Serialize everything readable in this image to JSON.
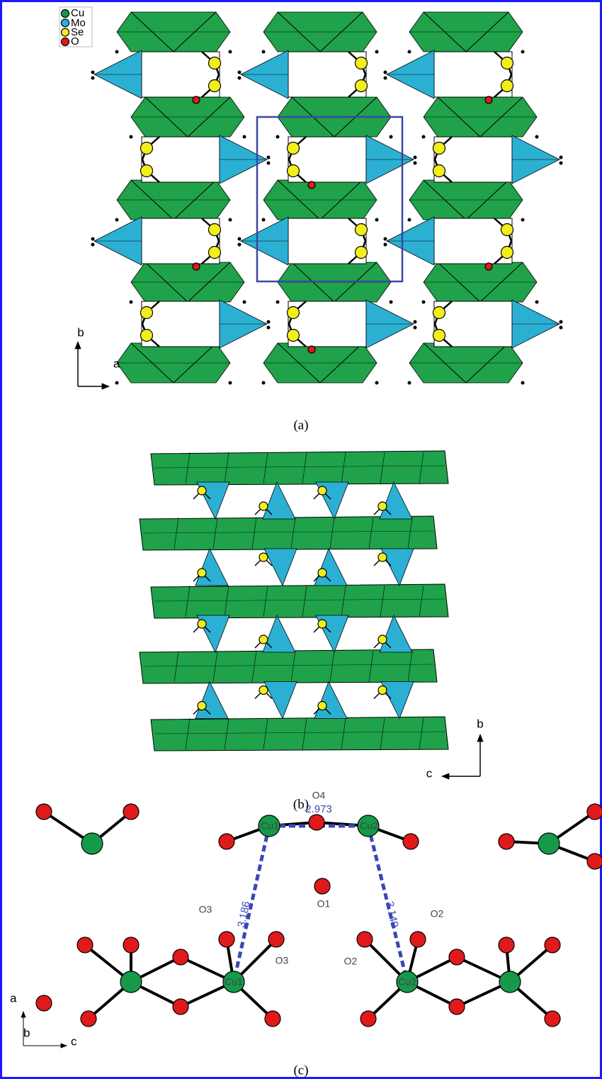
{
  "legend": [
    "Cu",
    "Mo",
    "Se",
    "O"
  ],
  "panel_a": {
    "caption": "(a)",
    "axes": [
      "b",
      "a"
    ]
  },
  "panel_b": {
    "caption": "(b)",
    "axes": [
      "b",
      "c"
    ]
  },
  "panel_c": {
    "caption": "(c)",
    "axes": [
      "a",
      "b",
      "c"
    ],
    "atom_labels": [
      "O4",
      "Cu1",
      "Cu2",
      "O1",
      "O3",
      "O3",
      "O2",
      "O2",
      "Cu1",
      "Cu2"
    ],
    "distances": [
      2.973,
      3.186,
      3.149
    ]
  }
}
